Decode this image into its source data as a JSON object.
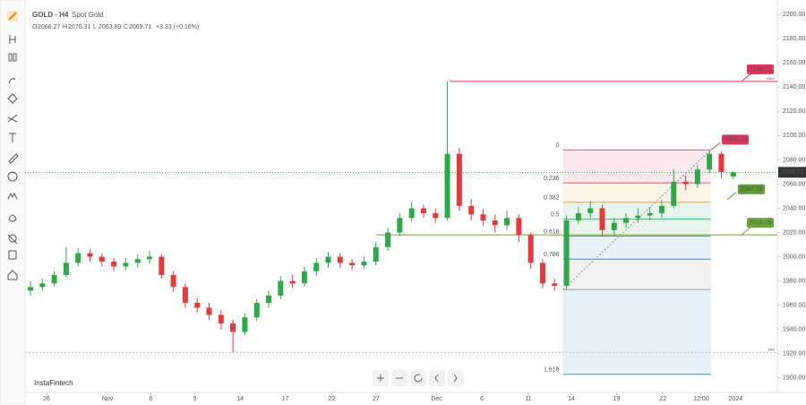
{
  "chart_data": {
    "type": "candlestick",
    "title": "GOLD · H4",
    "subtitle": "Spot Gold",
    "legend_ohlc": [
      {
        "label": "O",
        "value": "2066.27"
      },
      {
        "label": "H",
        "value": "2070.31"
      },
      {
        "label": "L",
        "value": "2063.89"
      },
      {
        "label": "C",
        "value": "2069.71"
      }
    ],
    "change": "+3.33 (+0.16%)",
    "watermark": "InstaFintech",
    "up_color": "#2ea84a",
    "down_color": "#e23a3f",
    "open": [
      1972,
      1975,
      1978,
      1985,
      1995,
      2003,
      2000,
      1996,
      1992,
      1995,
      1998,
      2000,
      1985,
      1975,
      1962,
      1958,
      1952,
      1945,
      1938,
      1950,
      1962,
      1968,
      1980,
      1978,
      1988,
      1995,
      2000,
      1995,
      1993,
      1996,
      2008,
      2020,
      2032,
      2040,
      2036,
      2032,
      2085,
      2042,
      2035,
      2030,
      2026,
      2032,
      2018,
      1995,
      1978,
      1976,
      2030,
      2036,
      2040,
      2022,
      2028,
      2032,
      2034,
      2036,
      2042,
      2062,
      2060,
      2072,
      2085,
      2066.27
    ],
    "high": [
      1980,
      1982,
      1988,
      2008,
      2007,
      2006,
      2003,
      1999,
      1999,
      2002,
      2005,
      2002,
      1988,
      1978,
      1966,
      1962,
      1956,
      1948,
      1953,
      1965,
      1972,
      1984,
      1985,
      1992,
      1999,
      2004,
      2003,
      1998,
      2000,
      2012,
      2024,
      2036,
      2045,
      2043,
      2040,
      2144.72,
      2090,
      2048,
      2039,
      2035,
      2038,
      2035,
      2020,
      1998,
      1982,
      2034,
      2041,
      2046,
      2043,
      2032,
      2036,
      2040,
      2041,
      2047,
      2072,
      2067,
      2076,
      2088.19,
      2087,
      2070.31
    ],
    "low": [
      1968,
      1972,
      1975,
      1983,
      1992,
      1996,
      1992,
      1988,
      1989,
      1991,
      1994,
      1982,
      1971,
      1958,
      1954,
      1948,
      1940,
      1921,
      1935,
      1947,
      1958,
      1965,
      1974,
      1975,
      1984,
      1991,
      1991,
      1989,
      1990,
      1993,
      2005,
      2017,
      2029,
      2032,
      2028,
      2030,
      2038,
      2030,
      2026,
      2020,
      2022,
      2012,
      1990,
      1974,
      1972,
      1973,
      2027,
      2032,
      2017,
      2018,
      2024,
      2028,
      2030,
      2032,
      2040,
      2055,
      2057,
      2069,
      2065,
      2063.89
    ],
    "close": [
      1975,
      1978,
      1985,
      1995,
      2003,
      2000,
      1996,
      1992,
      1995,
      1998,
      2000,
      1985,
      1975,
      1962,
      1958,
      1952,
      1945,
      1938,
      1950,
      1962,
      1968,
      1980,
      1978,
      1988,
      1995,
      2000,
      1995,
      1993,
      1996,
      2008,
      2020,
      2032,
      2040,
      2036,
      2032,
      2085,
      2042,
      2035,
      2030,
      2026,
      2032,
      2018,
      1995,
      1978,
      1976,
      2030,
      2036,
      2040,
      2022,
      2028,
      2032,
      2034,
      2036,
      2042,
      2062,
      2060,
      2072,
      2085,
      2070,
      2069.71
    ],
    "xlim": [
      -0.45,
      62.7
    ],
    "xticks": [
      {
        "value": 1.35,
        "label": "26"
      },
      {
        "value": 6.47,
        "label": "Nov"
      },
      {
        "value": 10.1,
        "label": "6"
      },
      {
        "value": 13.8,
        "label": "9"
      },
      {
        "value": 17.6,
        "label": "14"
      },
      {
        "value": 21.4,
        "label": "17"
      },
      {
        "value": 25.3,
        "label": "22"
      },
      {
        "value": 29.0,
        "label": "27"
      },
      {
        "value": 34.1,
        "label": "Dec"
      },
      {
        "value": 37.9,
        "label": "6"
      },
      {
        "value": 41.8,
        "label": "11"
      },
      {
        "value": 45.4,
        "label": "14"
      },
      {
        "value": 49.2,
        "label": "19"
      },
      {
        "value": 53.1,
        "label": "22"
      },
      {
        "value": 56.3,
        "label": "12:00"
      },
      {
        "value": 59.2,
        "label": "2024"
      }
    ],
    "ylim": [
      1888,
      2209
    ],
    "yticks": [
      {
        "value": 1900,
        "label": "1900.00"
      },
      {
        "value": 1920,
        "label": "1920.00"
      },
      {
        "value": 1940,
        "label": "1940.00"
      },
      {
        "value": 1960,
        "label": "1960.00"
      },
      {
        "value": 1980,
        "label": "1980.00"
      },
      {
        "value": 2000,
        "label": "2000.00"
      },
      {
        "value": 2020,
        "label": "2020.00"
      },
      {
        "value": 2040,
        "label": "2040.00"
      },
      {
        "value": 2060,
        "label": "2060.00"
      },
      {
        "value": 2080,
        "label": "2080.00"
      },
      {
        "value": 2100,
        "label": "2100.00"
      },
      {
        "value": 2120,
        "label": "2120.00"
      },
      {
        "value": 2140,
        "label": "2140.00"
      },
      {
        "value": 2160,
        "label": "2160.00"
      },
      {
        "value": 2180,
        "label": "2180.00"
      },
      {
        "value": 2200,
        "label": "2200.00"
      }
    ],
    "grid": false,
    "last_price": {
      "value": 2069.71,
      "label": "2069.71"
    },
    "fib": {
      "start": 44.7,
      "end": 57.1,
      "low": 1973,
      "low_color": "#9e9e9e",
      "levels": [
        {
          "label": "0",
          "price": 2088.19,
          "color": "#e8577a"
        },
        {
          "label": "0.236",
          "price": 2061,
          "color": "#e8577a"
        },
        {
          "label": "0.382",
          "price": 2045,
          "color": "#f0a040"
        },
        {
          "label": "0.5",
          "price": 2031,
          "color": "#4caf82"
        },
        {
          "label": "0.618",
          "price": 2017,
          "color": "#4caf50"
        },
        {
          "label": "0.786",
          "price": 1998,
          "color": "#4a90c8"
        },
        {
          "label": "1.618",
          "price": 1903,
          "color": "#4a90c8"
        }
      ]
    },
    "levels": [
      {
        "value": 2144.72,
        "label": "2144.72",
        "color": "#e0335e",
        "start": 35.2,
        "note": "MAX"
      },
      {
        "value": 2018.05,
        "label": "2018.05",
        "color": "#6aa83a",
        "start": 29.0
      },
      {
        "value": 1921,
        "color": "#bbbbbb",
        "start": -0.45,
        "note": "MIN"
      }
    ],
    "tags": [
      {
        "value": 2088.19,
        "label": "2088.19",
        "color": "#e0335e"
      },
      {
        "value": 2047.18,
        "label": "2047.18",
        "color": "#5e9e2e"
      }
    ]
  }
}
